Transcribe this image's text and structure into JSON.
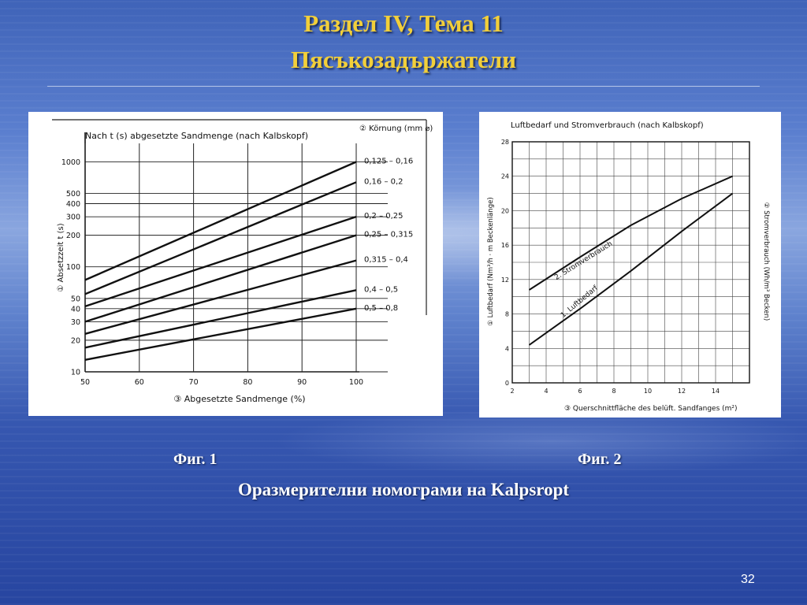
{
  "slide": {
    "title_line1": "Раздел IV, Тема 11",
    "title_line2": "Пясъкозадържатели",
    "fig1_caption": "Фиг. 1",
    "fig2_caption": "Фиг. 2",
    "subtitle": "Оразмерителни номограми на Kalpsropt",
    "page_number": "32"
  },
  "chart_data": [
    {
      "type": "line",
      "title": "Nach t (s) abgesetzte Sandmenge (nach Kalbskopf)",
      "xlabel": "③ Abgesetzte Sandmenge (%)",
      "ylabel": "① Absetzzeit t (s)",
      "legend_title": "② Körnung (mm ⌀)",
      "y_scale": "log",
      "xlim": [
        50,
        100
      ],
      "ylim": [
        10,
        1500
      ],
      "x_ticks": [
        50,
        60,
        70,
        80,
        90,
        100
      ],
      "y_ticks": [
        10,
        20,
        30,
        40,
        50,
        100,
        200,
        300,
        400,
        500,
        1000
      ],
      "series": [
        {
          "name": "0,125 – 0,16",
          "x": [
            50,
            100
          ],
          "y": [
            75,
            1000
          ]
        },
        {
          "name": "0,16 – 0,2",
          "x": [
            50,
            100
          ],
          "y": [
            55,
            640
          ]
        },
        {
          "name": "0,2 – 0,25",
          "x": [
            50,
            100
          ],
          "y": [
            42,
            300
          ]
        },
        {
          "name": "0,25 – 0,315",
          "x": [
            50,
            100
          ],
          "y": [
            30,
            200
          ]
        },
        {
          "name": "0,315 – 0,4",
          "x": [
            50,
            100
          ],
          "y": [
            23,
            115
          ]
        },
        {
          "name": "0,4 – 0,5",
          "x": [
            50,
            100
          ],
          "y": [
            17,
            60
          ]
        },
        {
          "name": "0,5 – 0,8",
          "x": [
            50,
            100
          ],
          "y": [
            13,
            40
          ]
        }
      ]
    },
    {
      "type": "line",
      "title": "Luftbedarf und Stromverbrauch (nach Kalbskopf)",
      "xlabel": "③ Querschnittfläche des belüft. Sandfanges (m²)",
      "ylabel_left": "① Luftbedarf (Nm³/h · m Beckenlänge)",
      "ylabel_right": "② Stromverbrauch (Wh/m³ Becken)",
      "xlim": [
        2,
        16
      ],
      "ylim": [
        0,
        28
      ],
      "x_ticks": [
        2,
        4,
        6,
        8,
        10,
        12,
        14
      ],
      "y_ticks": [
        0,
        4,
        8,
        12,
        16,
        20,
        24,
        28
      ],
      "series": [
        {
          "name": "1. Luftbedarf",
          "x": [
            3,
            6,
            9,
            12,
            15
          ],
          "y": [
            4.4,
            8.6,
            13.0,
            17.6,
            22.0
          ]
        },
        {
          "name": "2. Stromverbrauch",
          "x": [
            3,
            6,
            9,
            12,
            15
          ],
          "y": [
            10.8,
            14.6,
            18.3,
            21.4,
            24.0
          ]
        }
      ]
    }
  ]
}
